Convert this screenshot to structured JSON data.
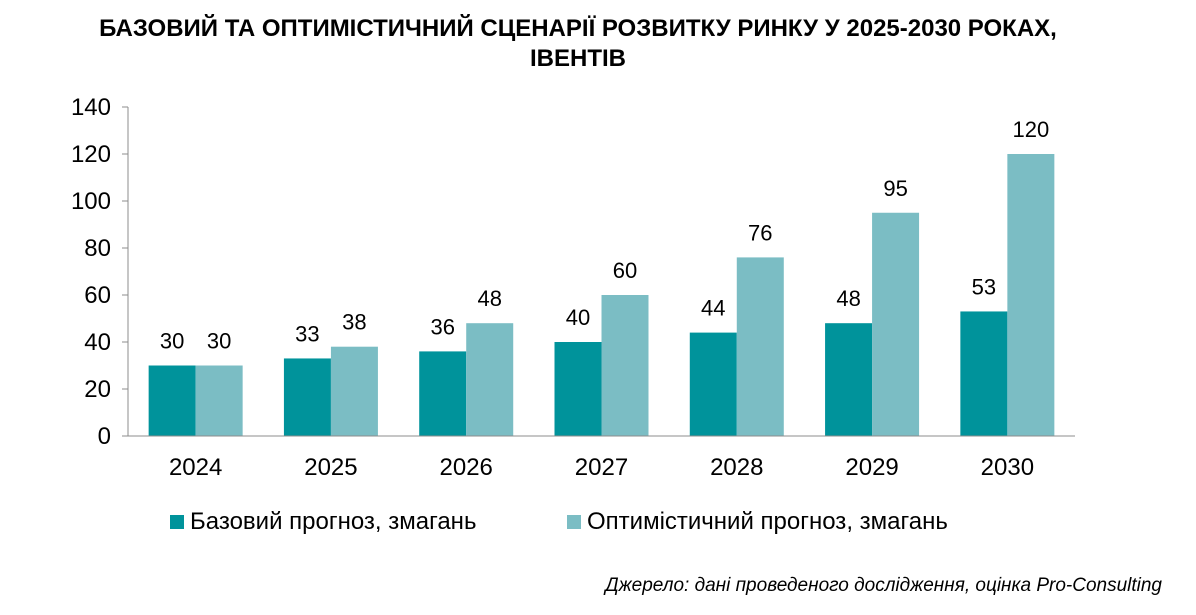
{
  "title_line1": "БАЗОВИЙ ТА ОПТИМІСТИЧНИЙ СЦЕНАРІЇ РОЗВИТКУ РИНКУ У 2025-2030 РОКАХ,",
  "title_line2": "ІВЕНТІВ",
  "source": "Джерело: дані проведеного дослідження, оцінка Pro-Consulting",
  "colors": {
    "base": "#00939B",
    "optimistic": "#7BBDC4"
  },
  "chart_data": {
    "type": "bar",
    "title": "БАЗОВИЙ ТА ОПТИМІСТИЧНИЙ СЦЕНАРІЇ РОЗВИТКУ РИНКУ У 2025-2030 РОКАХ, ІВЕНТІВ",
    "categories": [
      "2024",
      "2025",
      "2026",
      "2027",
      "2028",
      "2029",
      "2030"
    ],
    "series": [
      {
        "name": "Базовий прогноз, змагань",
        "values": [
          30,
          33,
          36,
          40,
          44,
          48,
          53
        ]
      },
      {
        "name": "Оптимістичний прогноз, змагань",
        "values": [
          30,
          38,
          48,
          60,
          76,
          95,
          120
        ]
      }
    ],
    "ylim": [
      0,
      140
    ],
    "yticks": [
      0,
      20,
      40,
      60,
      80,
      100,
      120,
      140
    ],
    "xlabel": "",
    "ylabel": "",
    "legend_position": "bottom"
  }
}
